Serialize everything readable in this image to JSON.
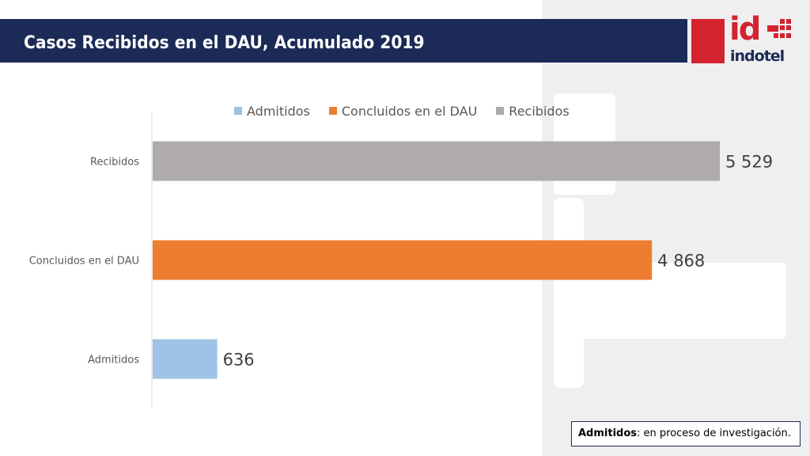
{
  "header": {
    "title": "Casos Recibidos en el DAU, Acumulado 2019"
  },
  "logo": {
    "mark": "id",
    "wordmark": "indotel",
    "brand_color": "#d3232f",
    "navy": "#1b2a56"
  },
  "chart_data": {
    "type": "bar",
    "orientation": "horizontal",
    "categories": [
      "Recibidos",
      "Concluidos en el DAU",
      "Admitidos"
    ],
    "values": [
      5529,
      4868,
      636
    ],
    "value_labels": [
      "5 529",
      "4 868",
      "636"
    ],
    "colors": [
      "#afabab",
      "#ed7d31",
      "#9dc3e6"
    ],
    "legend": {
      "position": "top",
      "entries": [
        {
          "label": "Admitidos",
          "color": "#9dc3e6"
        },
        {
          "label": "Concluidos en el DAU",
          "color": "#ed7d31"
        },
        {
          "label": "Recibidos",
          "color": "#afabab"
        }
      ]
    },
    "xlim": [
      0,
      5529
    ],
    "grid": false
  },
  "note": {
    "term": "Admitidos",
    "text": ": en proceso de investigación."
  }
}
